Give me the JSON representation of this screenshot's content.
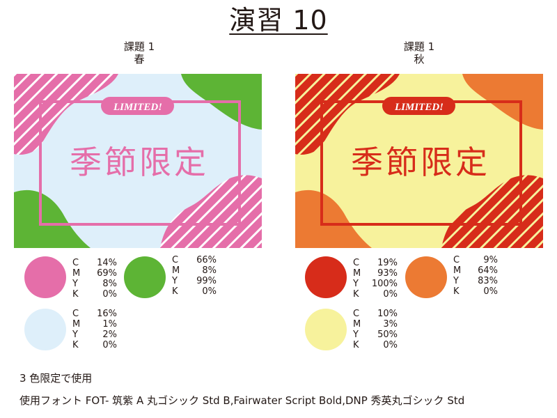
{
  "title": "演習 10",
  "sections": [
    {
      "caption_line1": "課題 1",
      "caption_line2": "春",
      "card": {
        "badge": "LIMITED!",
        "text": "季節限定",
        "colors": {
          "bg": "#deeffa",
          "pink": "#e56ea9",
          "green": "#5db435"
        }
      },
      "swatches": [
        {
          "color": "#e56ea9",
          "C": "14%",
          "M": "69%",
          "Y": "8%",
          "K": "0%"
        },
        {
          "color": "#5db435",
          "C": "66%",
          "M": "8%",
          "Y": "99%",
          "K": "0%"
        },
        {
          "color": "#deeffa",
          "C": "16%",
          "M": "1%",
          "Y": "2%",
          "K": "0%"
        }
      ]
    },
    {
      "caption_line1": "課題 1",
      "caption_line2": "秋",
      "card": {
        "badge": "LIMITED!",
        "text": "季節限定",
        "colors": {
          "bg": "#f7f29c",
          "red": "#d72c1a",
          "orange": "#ec7a33"
        }
      },
      "swatches": [
        {
          "color": "#d72c1a",
          "C": "19%",
          "M": "93%",
          "Y": "100%",
          "K": "0%"
        },
        {
          "color": "#ec7a33",
          "C": "9%",
          "M": "64%",
          "Y": "83%",
          "K": "0%"
        },
        {
          "color": "#f7f29c",
          "C": "10%",
          "M": "3%",
          "Y": "50%",
          "K": "0%"
        }
      ]
    }
  ],
  "notes": {
    "line1": "3 色限定で使用",
    "line2": "使用フォント FOT- 筑紫 A 丸ゴシック Std B,Fairwater Script Bold,DNP 秀英丸ゴシック Std"
  }
}
